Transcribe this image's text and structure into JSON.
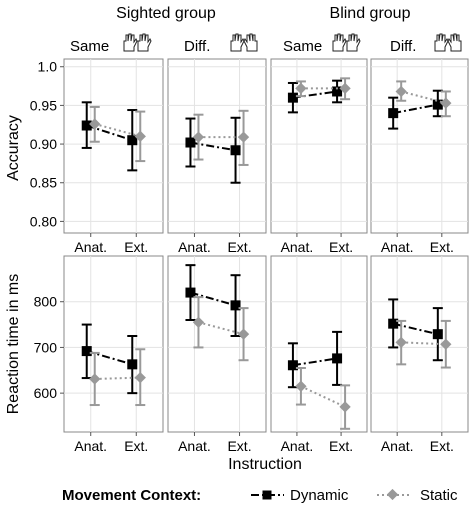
{
  "chart_data": {
    "type": "line",
    "group_labels": [
      "Sighted group",
      "Blind group"
    ],
    "facet_labels": [
      "Same",
      "Diff.",
      "Same",
      "Diff."
    ],
    "categories": [
      "Anat.",
      "Ext."
    ],
    "xlabel": "Instruction",
    "legend": {
      "title": "Movement  Context:",
      "position": "bottom",
      "entries": [
        "Dynamic",
        "Static"
      ]
    },
    "colors": {
      "dynamic": "#000000",
      "static": "#999999"
    },
    "rows": [
      {
        "ylabel": "Accuracy",
        "ylim": [
          0.785,
          1.01
        ],
        "yticks": [
          0.8,
          0.85,
          0.9,
          0.95,
          1.0
        ],
        "ytick_labels": [
          "0.80",
          "0.85",
          "0.90",
          "0.95",
          "1.0"
        ],
        "panels": [
          {
            "series": [
              {
                "name": "Dynamic",
                "values": [
                  0.924,
                  0.905
                ],
                "lower": [
                  0.895,
                  0.866
                ],
                "upper": [
                  0.954,
                  0.944
                ]
              },
              {
                "name": "Static",
                "values": [
                  0.926,
                  0.91
                ],
                "lower": [
                  0.903,
                  0.878
                ],
                "upper": [
                  0.948,
                  0.942
                ]
              }
            ]
          },
          {
            "series": [
              {
                "name": "Dynamic",
                "values": [
                  0.902,
                  0.892
                ],
                "lower": [
                  0.871,
                  0.85
                ],
                "upper": [
                  0.933,
                  0.934
                ]
              },
              {
                "name": "Static",
                "values": [
                  0.909,
                  0.909
                ],
                "lower": [
                  0.88,
                  0.873
                ],
                "upper": [
                  0.938,
                  0.943
                ]
              }
            ]
          },
          {
            "series": [
              {
                "name": "Dynamic",
                "values": [
                  0.96,
                  0.968
                ],
                "lower": [
                  0.941,
                  0.954
                ],
                "upper": [
                  0.979,
                  0.982
                ]
              },
              {
                "name": "Static",
                "values": [
                  0.972,
                  0.972
                ],
                "lower": [
                  0.962,
                  0.958
                ],
                "upper": [
                  0.981,
                  0.985
                ]
              }
            ]
          },
          {
            "series": [
              {
                "name": "Dynamic",
                "values": [
                  0.94,
                  0.951
                ],
                "lower": [
                  0.92,
                  0.936
                ],
                "upper": [
                  0.96,
                  0.969
                ]
              },
              {
                "name": "Static",
                "values": [
                  0.968,
                  0.953
                ],
                "lower": [
                  0.956,
                  0.936
                ],
                "upper": [
                  0.981,
                  0.968
                ]
              }
            ]
          }
        ]
      },
      {
        "ylabel": "Reaction time in ms",
        "ylim": [
          515,
          900
        ],
        "yticks": [
          600,
          700,
          800
        ],
        "ytick_labels": [
          "600",
          "700",
          "800"
        ],
        "panels": [
          {
            "series": [
              {
                "name": "Dynamic",
                "values": [
                  692,
                  663
                ],
                "lower": [
                  633,
                  600
                ],
                "upper": [
                  750,
                  725
                ]
              },
              {
                "name": "Static",
                "values": [
                  631,
                  634
                ],
                "lower": [
                  574,
                  574
                ],
                "upper": [
                  688,
                  696
                ]
              }
            ]
          },
          {
            "series": [
              {
                "name": "Dynamic",
                "values": [
                  820,
                  792
                ],
                "lower": [
                  760,
                  725
                ],
                "upper": [
                  880,
                  858
                ]
              },
              {
                "name": "Static",
                "values": [
                  755,
                  729
                ],
                "lower": [
                  700,
                  672
                ],
                "upper": [
                  810,
                  786
                ]
              }
            ]
          },
          {
            "series": [
              {
                "name": "Dynamic",
                "values": [
                  661,
                  676
                ],
                "lower": [
                  613,
                  618
                ],
                "upper": [
                  709,
                  734
                ]
              },
              {
                "name": "Static",
                "values": [
                  615,
                  570
                ],
                "lower": [
                  575,
                  522
                ],
                "upper": [
                  655,
                  617
                ]
              }
            ]
          },
          {
            "series": [
              {
                "name": "Dynamic",
                "values": [
                  752,
                  729
                ],
                "lower": [
                  700,
                  672
                ],
                "upper": [
                  805,
                  786
                ]
              },
              {
                "name": "Static",
                "values": [
                  711,
                  707
                ],
                "lower": [
                  663,
                  656
                ],
                "upper": [
                  758,
                  758
                ]
              }
            ]
          }
        ]
      }
    ]
  }
}
